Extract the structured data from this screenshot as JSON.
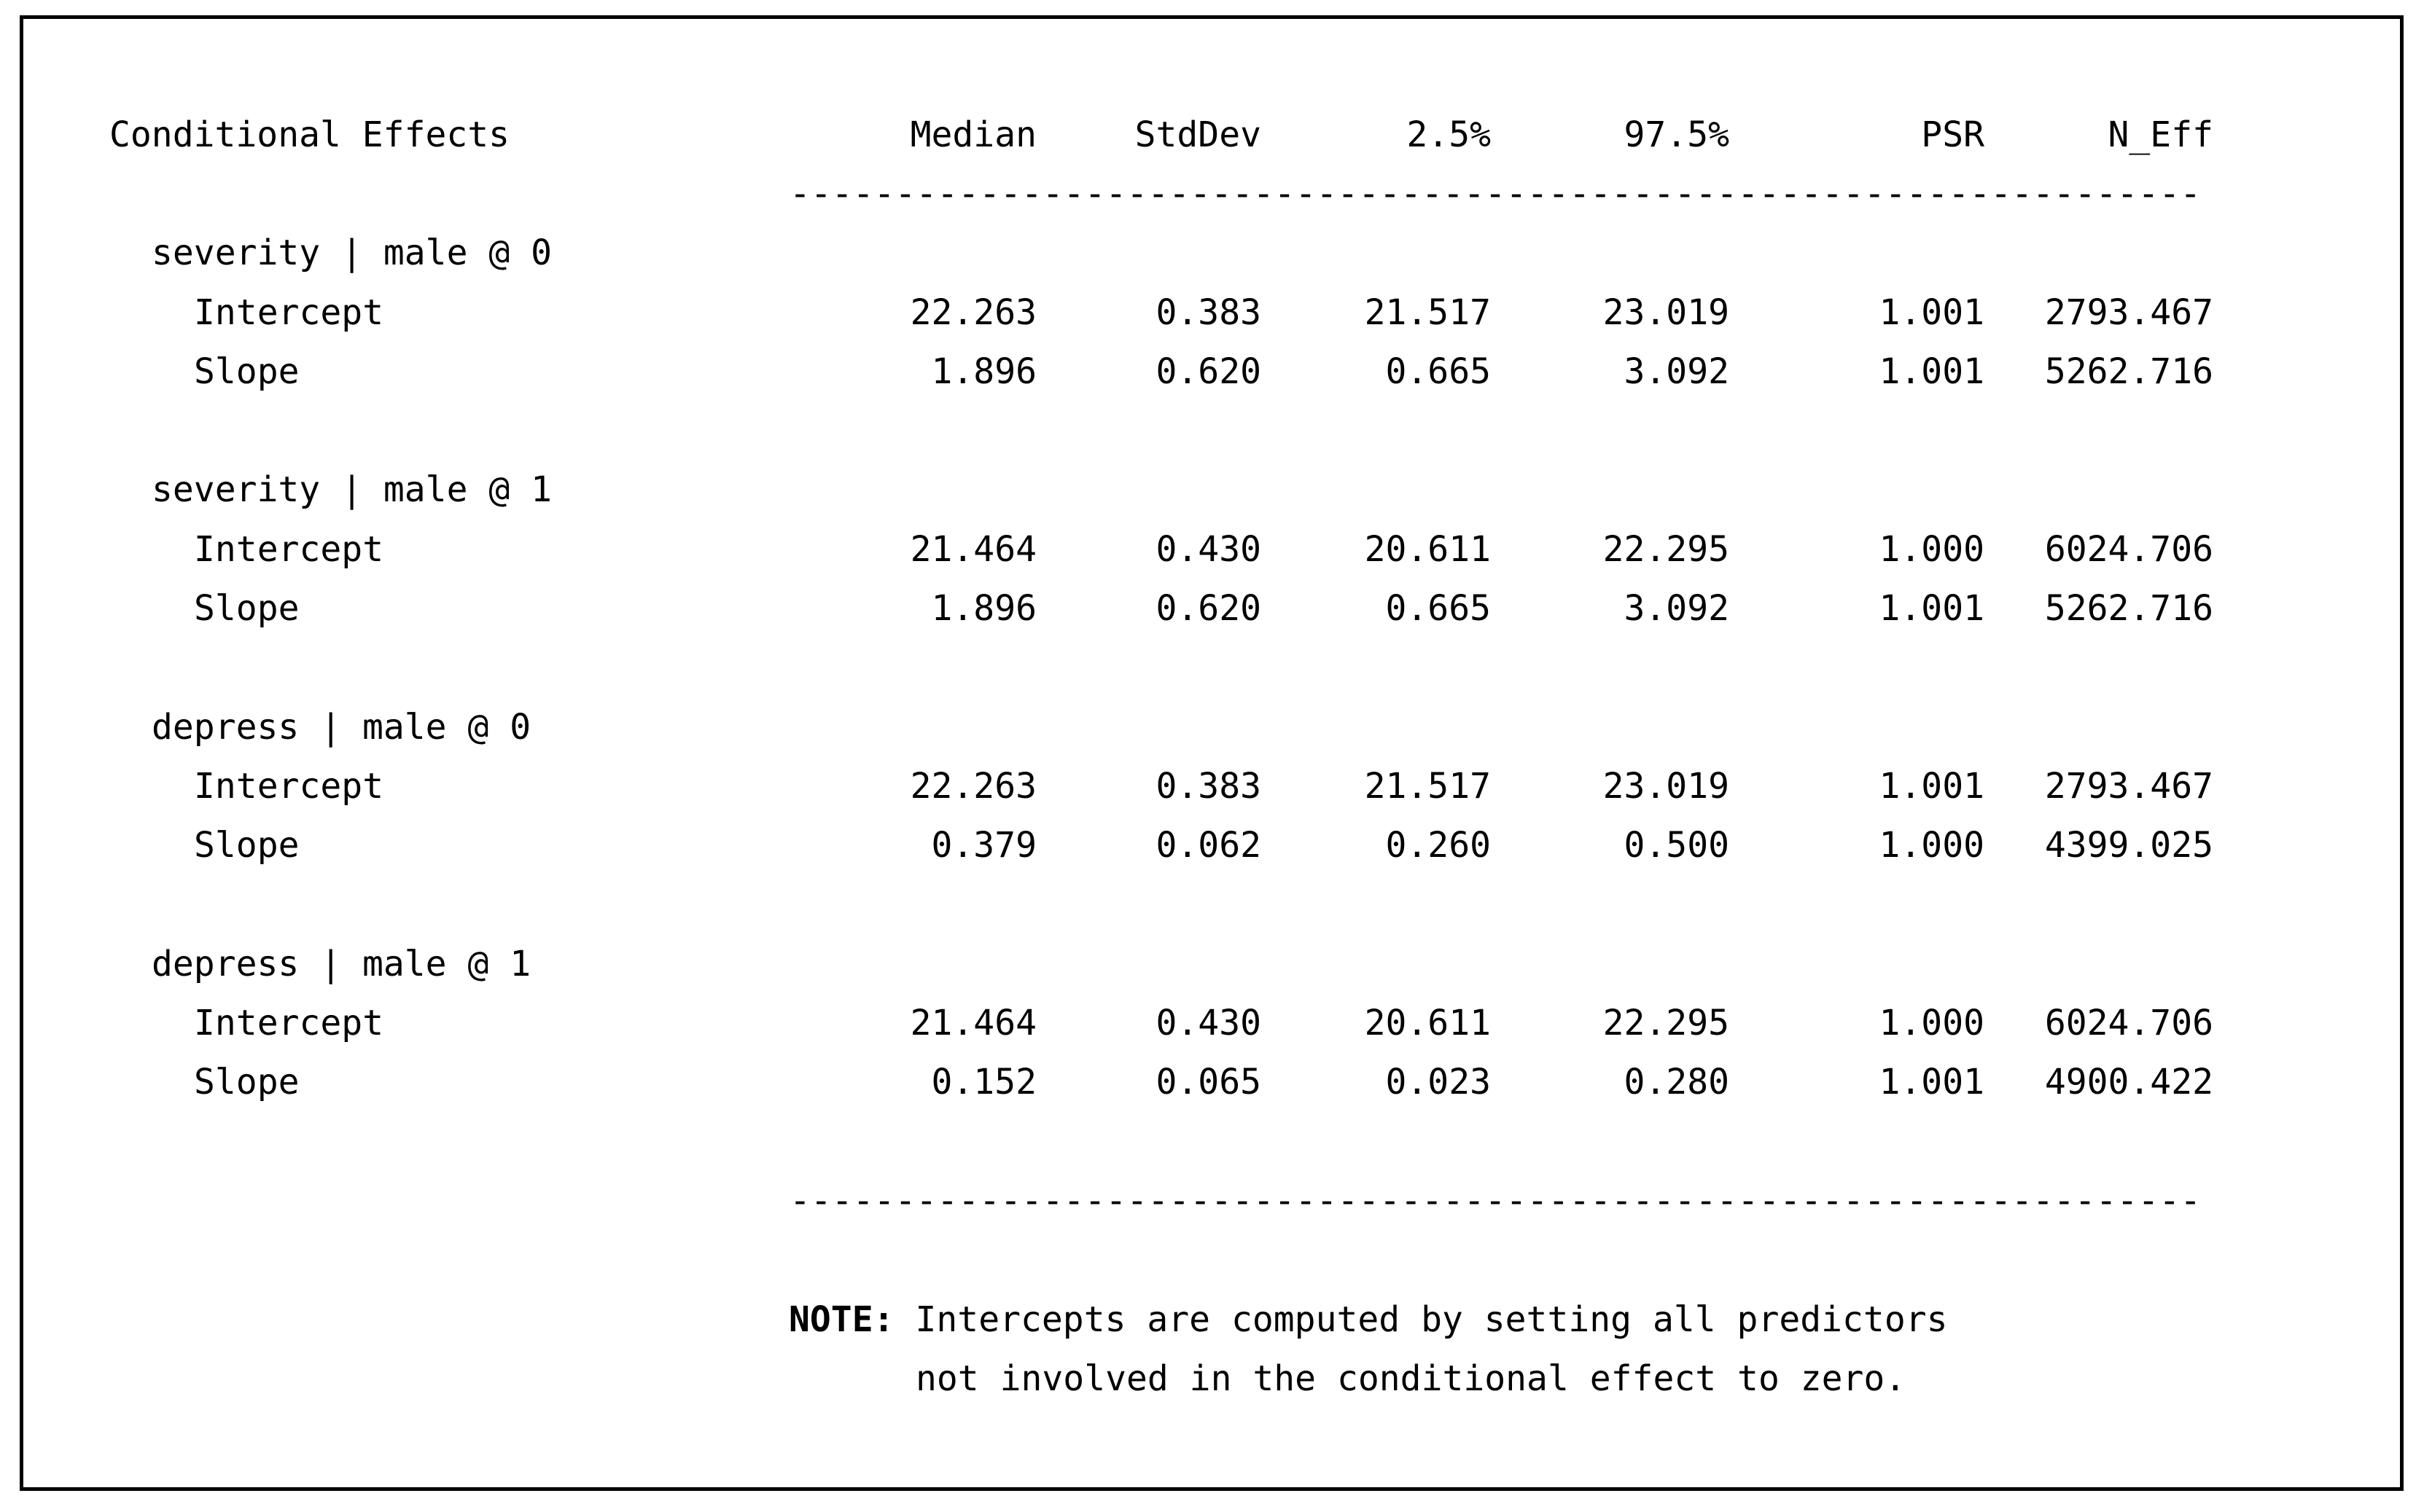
{
  "table": {
    "title": "Conditional Effects",
    "columns": [
      "Median",
      "StdDev",
      "2.5%",
      "97.5%",
      "PSR",
      "N_Eff"
    ],
    "divider": "-------------------------------------------------------------------",
    "groups": [
      {
        "label": "severity | male @ 0",
        "rows": [
          {
            "label": "Intercept",
            "values": [
              "22.263",
              "0.383",
              "21.517",
              "23.019",
              "1.001",
              "2793.467"
            ]
          },
          {
            "label": "Slope",
            "values": [
              "1.896",
              "0.620",
              "0.665",
              "3.092",
              "1.001",
              "5262.716"
            ]
          }
        ]
      },
      {
        "label": "severity | male @ 1",
        "rows": [
          {
            "label": "Intercept",
            "values": [
              "21.464",
              "0.430",
              "20.611",
              "22.295",
              "1.000",
              "6024.706"
            ]
          },
          {
            "label": "Slope",
            "values": [
              "1.896",
              "0.620",
              "0.665",
              "3.092",
              "1.001",
              "5262.716"
            ]
          }
        ]
      },
      {
        "label": "depress | male @ 0",
        "rows": [
          {
            "label": "Intercept",
            "values": [
              "22.263",
              "0.383",
              "21.517",
              "23.019",
              "1.001",
              "2793.467"
            ]
          },
          {
            "label": "Slope",
            "values": [
              "0.379",
              "0.062",
              "0.260",
              "0.500",
              "1.000",
              "4399.025"
            ]
          }
        ]
      },
      {
        "label": "depress | male @ 1",
        "rows": [
          {
            "label": "Intercept",
            "values": [
              "21.464",
              "0.430",
              "20.611",
              "22.295",
              "1.000",
              "6024.706"
            ]
          },
          {
            "label": "Slope",
            "values": [
              "0.152",
              "0.065",
              "0.023",
              "0.280",
              "1.001",
              "4900.422"
            ]
          }
        ]
      }
    ],
    "note": {
      "label": "NOTE:",
      "line1": "Intercepts are computed by setting all predictors",
      "line2": "not involved in the conditional effect to zero."
    }
  }
}
